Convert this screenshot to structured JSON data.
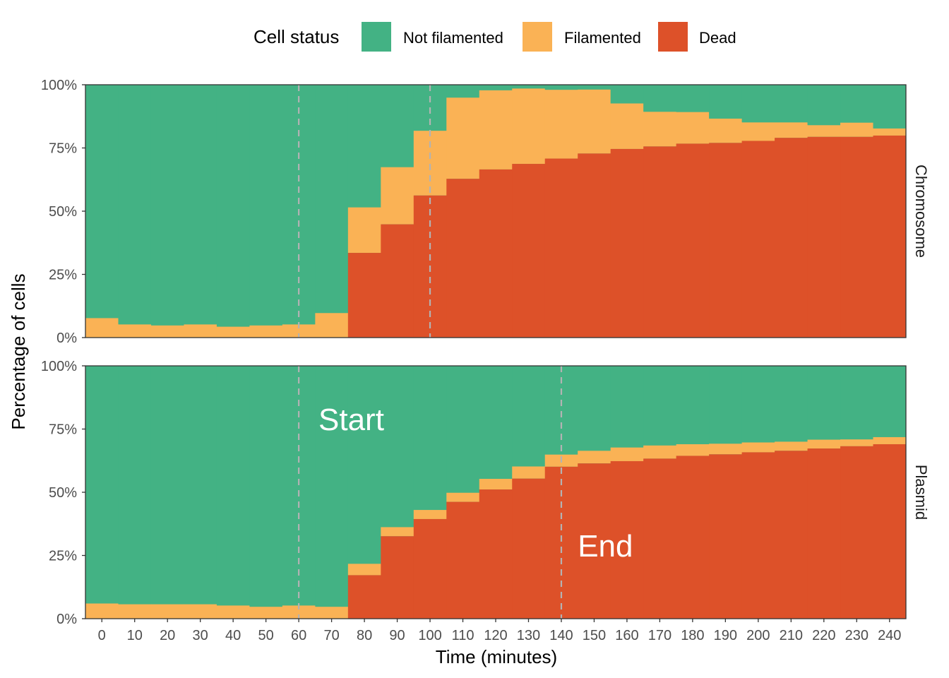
{
  "legend": {
    "title": "Cell status",
    "items": [
      {
        "label": "Not filamented",
        "color": "#43b284"
      },
      {
        "label": "Filamented",
        "color": "#fab255"
      },
      {
        "label": "Dead",
        "color": "#dd5129"
      }
    ]
  },
  "chart_data": {
    "type": "area",
    "stacked": true,
    "xlabel": "Time (minutes)",
    "ylabel": "Percentage of cells",
    "ylim": [
      0,
      100
    ],
    "y_ticks": [
      "0%",
      "25%",
      "50%",
      "75%",
      "100%"
    ],
    "x_ticks": [
      0,
      10,
      20,
      30,
      40,
      50,
      60,
      70,
      80,
      90,
      100,
      110,
      120,
      130,
      140,
      150,
      160,
      170,
      180,
      190,
      200,
      210,
      220,
      230,
      240
    ],
    "x_step": 10,
    "panels": [
      {
        "label": "Chromosome",
        "x": [
          0,
          10,
          20,
          30,
          40,
          50,
          60,
          70,
          80,
          90,
          100,
          110,
          120,
          130,
          140,
          150,
          160,
          170,
          180,
          190,
          200,
          210,
          220,
          230,
          240
        ],
        "dead": [
          0,
          0,
          0,
          0,
          0,
          0,
          0,
          0,
          33.5,
          44.8,
          56.2,
          62.8,
          66.5,
          68.7,
          70.8,
          72.8,
          74.6,
          75.6,
          76.7,
          77.0,
          77.8,
          79.0,
          79.4,
          79.4,
          79.9
        ],
        "filamented": [
          7.7,
          5.2,
          4.8,
          5.2,
          4.3,
          4.8,
          5.2,
          9.7,
          18.0,
          22.6,
          25.6,
          32.1,
          31.3,
          29.8,
          27.2,
          25.3,
          18.0,
          13.7,
          12.5,
          9.6,
          7.3,
          6.1,
          4.6,
          5.6,
          2.8
        ],
        "vlines": [
          60,
          100
        ],
        "annotations": []
      },
      {
        "label": "Plasmid",
        "x": [
          0,
          10,
          20,
          30,
          40,
          50,
          60,
          70,
          80,
          90,
          100,
          110,
          120,
          130,
          140,
          150,
          160,
          170,
          180,
          190,
          200,
          210,
          220,
          230,
          240
        ],
        "dead": [
          0,
          0,
          0,
          0,
          0,
          0,
          0,
          0,
          17.2,
          32.6,
          39.4,
          46.2,
          51.1,
          55.4,
          60.1,
          61.4,
          62.3,
          63.3,
          64.4,
          65.0,
          65.8,
          66.4,
          67.3,
          68.2,
          69.0
        ],
        "filamented": [
          6.0,
          5.7,
          5.7,
          5.7,
          5.2,
          4.7,
          5.2,
          4.7,
          4.5,
          3.6,
          3.6,
          3.6,
          4.2,
          4.8,
          4.8,
          5.0,
          5.4,
          5.2,
          4.6,
          4.2,
          3.9,
          3.6,
          3.5,
          2.7,
          2.8
        ],
        "vlines": [
          60,
          140
        ],
        "annotations": [
          {
            "text": "Start",
            "x": 66,
            "y": 79
          },
          {
            "text": "End",
            "x": 145,
            "y": 29
          }
        ]
      }
    ]
  }
}
